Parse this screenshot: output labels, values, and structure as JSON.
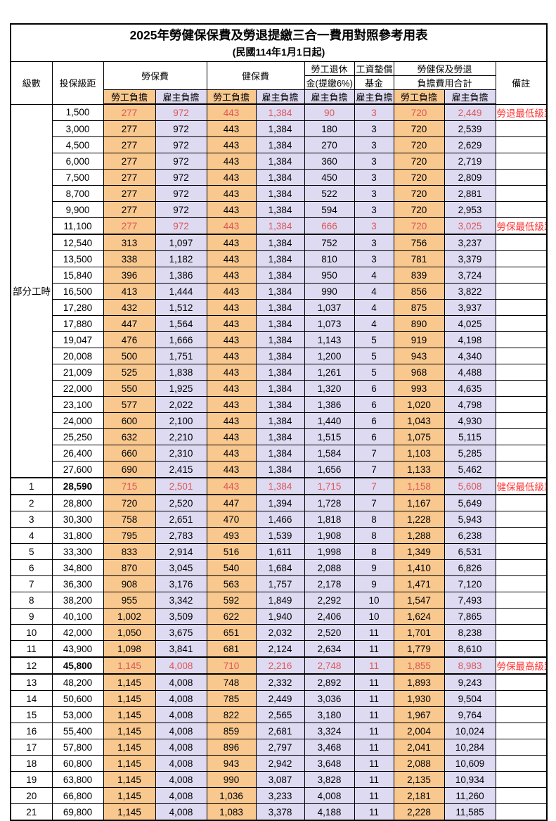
{
  "title": "2025年勞健保保費及勞退提繳三合一費用對照參考用表",
  "subtitle": "(民國114年1月1日起)",
  "header": {
    "level": "級數",
    "salary": "投保級距",
    "labor_ins": "勞保費",
    "health_ins": "健保費",
    "pension_line1": "勞工退休",
    "pension_line2": "金(提繳6%)",
    "wage_fund_line1": "工資墊償",
    "wage_fund_line2": "基金",
    "total_line1": "勞健保及勞退",
    "total_line2": "負擔費用合計",
    "note": "備註",
    "employee_label": "勞工負擔",
    "employer_label": "雇主負擔"
  },
  "part_time_label": "部分工時",
  "colors": {
    "employee_bg": "#F8C88F",
    "employer_bg": "#DEDAF1",
    "highlight_value_red": "#DC5656",
    "note_red": "#FF3333",
    "border_black": "#000000"
  },
  "rows": [
    {
      "level": "",
      "salary": "1,500",
      "values": [
        "277",
        "972",
        "443",
        "1,384",
        "90",
        "3",
        "720",
        "2,449"
      ],
      "note": "勞退最低級距",
      "red": true,
      "bold": false,
      "thick": false,
      "thickAfter": false
    },
    {
      "level": "",
      "salary": "3,000",
      "values": [
        "277",
        "972",
        "443",
        "1,384",
        "180",
        "3",
        "720",
        "2,539"
      ],
      "note": "",
      "red": false,
      "bold": false,
      "thick": false,
      "thickAfter": false
    },
    {
      "level": "",
      "salary": "4,500",
      "values": [
        "277",
        "972",
        "443",
        "1,384",
        "270",
        "3",
        "720",
        "2,629"
      ],
      "note": "",
      "red": false,
      "bold": false,
      "thick": false,
      "thickAfter": false
    },
    {
      "level": "",
      "salary": "6,000",
      "values": [
        "277",
        "972",
        "443",
        "1,384",
        "360",
        "3",
        "720",
        "2,719"
      ],
      "note": "",
      "red": false,
      "bold": false,
      "thick": false,
      "thickAfter": false
    },
    {
      "level": "",
      "salary": "7,500",
      "values": [
        "277",
        "972",
        "443",
        "1,384",
        "450",
        "3",
        "720",
        "2,809"
      ],
      "note": "",
      "red": false,
      "bold": false,
      "thick": false,
      "thickAfter": false
    },
    {
      "level": "",
      "salary": "8,700",
      "values": [
        "277",
        "972",
        "443",
        "1,384",
        "522",
        "3",
        "720",
        "2,881"
      ],
      "note": "",
      "red": false,
      "bold": false,
      "thick": false,
      "thickAfter": false
    },
    {
      "level": "",
      "salary": "9,900",
      "values": [
        "277",
        "972",
        "443",
        "1,384",
        "594",
        "3",
        "720",
        "2,953"
      ],
      "note": "",
      "red": false,
      "bold": false,
      "thick": false,
      "thickAfter": false
    },
    {
      "level": "",
      "salary": "11,100",
      "values": [
        "277",
        "972",
        "443",
        "1,384",
        "666",
        "3",
        "720",
        "3,025"
      ],
      "note": "勞保最低級距",
      "red": true,
      "bold": false,
      "thick": false,
      "thickAfter": true
    },
    {
      "level": "",
      "salary": "12,540",
      "values": [
        "313",
        "1,097",
        "443",
        "1,384",
        "752",
        "3",
        "756",
        "3,237"
      ],
      "note": "",
      "red": false,
      "bold": false,
      "thick": false,
      "thickAfter": false
    },
    {
      "level": "",
      "salary": "13,500",
      "values": [
        "338",
        "1,182",
        "443",
        "1,384",
        "810",
        "3",
        "781",
        "3,379"
      ],
      "note": "",
      "red": false,
      "bold": false,
      "thick": false,
      "thickAfter": false
    },
    {
      "level": "",
      "salary": "15,840",
      "values": [
        "396",
        "1,386",
        "443",
        "1,384",
        "950",
        "4",
        "839",
        "3,724"
      ],
      "note": "",
      "red": false,
      "bold": false,
      "thick": false,
      "thickAfter": false
    },
    {
      "level": "",
      "salary": "16,500",
      "values": [
        "413",
        "1,444",
        "443",
        "1,384",
        "990",
        "4",
        "856",
        "3,822"
      ],
      "note": "",
      "red": false,
      "bold": false,
      "thick": false,
      "thickAfter": false
    },
    {
      "level": "",
      "salary": "17,280",
      "values": [
        "432",
        "1,512",
        "443",
        "1,384",
        "1,037",
        "4",
        "875",
        "3,937"
      ],
      "note": "",
      "red": false,
      "bold": false,
      "thick": false,
      "thickAfter": false
    },
    {
      "level": "",
      "salary": "17,880",
      "values": [
        "447",
        "1,564",
        "443",
        "1,384",
        "1,073",
        "4",
        "890",
        "4,025"
      ],
      "note": "",
      "red": false,
      "bold": false,
      "thick": false,
      "thickAfter": false
    },
    {
      "level": "",
      "salary": "19,047",
      "values": [
        "476",
        "1,666",
        "443",
        "1,384",
        "1,143",
        "5",
        "919",
        "4,198"
      ],
      "note": "",
      "red": false,
      "bold": false,
      "thick": false,
      "thickAfter": false
    },
    {
      "level": "",
      "salary": "20,008",
      "values": [
        "500",
        "1,751",
        "443",
        "1,384",
        "1,200",
        "5",
        "943",
        "4,340"
      ],
      "note": "",
      "red": false,
      "bold": false,
      "thick": false,
      "thickAfter": false
    },
    {
      "level": "",
      "salary": "21,009",
      "values": [
        "525",
        "1,838",
        "443",
        "1,384",
        "1,261",
        "5",
        "968",
        "4,488"
      ],
      "note": "",
      "red": false,
      "bold": false,
      "thick": false,
      "thickAfter": false
    },
    {
      "level": "",
      "salary": "22,000",
      "values": [
        "550",
        "1,925",
        "443",
        "1,384",
        "1,320",
        "6",
        "993",
        "4,635"
      ],
      "note": "",
      "red": false,
      "bold": false,
      "thick": false,
      "thickAfter": false
    },
    {
      "level": "",
      "salary": "23,100",
      "values": [
        "577",
        "2,022",
        "443",
        "1,384",
        "1,386",
        "6",
        "1,020",
        "4,798"
      ],
      "note": "",
      "red": false,
      "bold": false,
      "thick": false,
      "thickAfter": false
    },
    {
      "level": "",
      "salary": "24,000",
      "values": [
        "600",
        "2,100",
        "443",
        "1,384",
        "1,440",
        "6",
        "1,043",
        "4,930"
      ],
      "note": "",
      "red": false,
      "bold": false,
      "thick": false,
      "thickAfter": false
    },
    {
      "level": "",
      "salary": "25,250",
      "values": [
        "632",
        "2,210",
        "443",
        "1,384",
        "1,515",
        "6",
        "1,075",
        "5,115"
      ],
      "note": "",
      "red": false,
      "bold": false,
      "thick": false,
      "thickAfter": false
    },
    {
      "level": "",
      "salary": "26,400",
      "values": [
        "660",
        "2,310",
        "443",
        "1,384",
        "1,584",
        "7",
        "1,103",
        "5,285"
      ],
      "note": "",
      "red": false,
      "bold": false,
      "thick": false,
      "thickAfter": false
    },
    {
      "level": "",
      "salary": "27,600",
      "values": [
        "690",
        "2,415",
        "443",
        "1,384",
        "1,656",
        "7",
        "1,133",
        "5,462"
      ],
      "note": "",
      "red": false,
      "bold": false,
      "thick": false,
      "thickAfter": false
    },
    {
      "level": "1",
      "salary": "28,590",
      "values": [
        "715",
        "2,501",
        "443",
        "1,384",
        "1,715",
        "7",
        "1,158",
        "5,608"
      ],
      "note": "健保最低級距",
      "red": true,
      "bold": true,
      "thick": true,
      "thickAfter": false
    },
    {
      "level": "2",
      "salary": "28,800",
      "values": [
        "720",
        "2,520",
        "447",
        "1,394",
        "1,728",
        "7",
        "1,167",
        "5,649"
      ],
      "note": "",
      "red": false,
      "bold": false,
      "thick": false,
      "thickAfter": false
    },
    {
      "level": "3",
      "salary": "30,300",
      "values": [
        "758",
        "2,651",
        "470",
        "1,466",
        "1,818",
        "8",
        "1,228",
        "5,943"
      ],
      "note": "",
      "red": false,
      "bold": false,
      "thick": false,
      "thickAfter": false
    },
    {
      "level": "4",
      "salary": "31,800",
      "values": [
        "795",
        "2,783",
        "493",
        "1,539",
        "1,908",
        "8",
        "1,288",
        "6,238"
      ],
      "note": "",
      "red": false,
      "bold": false,
      "thick": false,
      "thickAfter": false
    },
    {
      "level": "5",
      "salary": "33,300",
      "values": [
        "833",
        "2,914",
        "516",
        "1,611",
        "1,998",
        "8",
        "1,349",
        "6,531"
      ],
      "note": "",
      "red": false,
      "bold": false,
      "thick": false,
      "thickAfter": false
    },
    {
      "level": "6",
      "salary": "34,800",
      "values": [
        "870",
        "3,045",
        "540",
        "1,684",
        "2,088",
        "9",
        "1,410",
        "6,826"
      ],
      "note": "",
      "red": false,
      "bold": false,
      "thick": false,
      "thickAfter": false
    },
    {
      "level": "7",
      "salary": "36,300",
      "values": [
        "908",
        "3,176",
        "563",
        "1,757",
        "2,178",
        "9",
        "1,471",
        "7,120"
      ],
      "note": "",
      "red": false,
      "bold": false,
      "thick": false,
      "thickAfter": false
    },
    {
      "level": "8",
      "salary": "38,200",
      "values": [
        "955",
        "3,342",
        "592",
        "1,849",
        "2,292",
        "10",
        "1,547",
        "7,493"
      ],
      "note": "",
      "red": false,
      "bold": false,
      "thick": false,
      "thickAfter": false
    },
    {
      "level": "9",
      "salary": "40,100",
      "values": [
        "1,002",
        "3,509",
        "622",
        "1,940",
        "2,406",
        "10",
        "1,624",
        "7,865"
      ],
      "note": "",
      "red": false,
      "bold": false,
      "thick": false,
      "thickAfter": false
    },
    {
      "level": "10",
      "salary": "42,000",
      "values": [
        "1,050",
        "3,675",
        "651",
        "2,032",
        "2,520",
        "11",
        "1,701",
        "8,238"
      ],
      "note": "",
      "red": false,
      "bold": false,
      "thick": false,
      "thickAfter": false
    },
    {
      "level": "11",
      "salary": "43,900",
      "values": [
        "1,098",
        "3,841",
        "681",
        "2,124",
        "2,634",
        "11",
        "1,779",
        "8,610"
      ],
      "note": "",
      "red": false,
      "bold": false,
      "thick": false,
      "thickAfter": false
    },
    {
      "level": "12",
      "salary": "45,800",
      "values": [
        "1,145",
        "4,008",
        "710",
        "2,216",
        "2,748",
        "11",
        "1,855",
        "8,983"
      ],
      "note": "勞保最高級距",
      "red": true,
      "bold": true,
      "thick": true,
      "thickAfter": false
    },
    {
      "level": "13",
      "salary": "48,200",
      "values": [
        "1,145",
        "4,008",
        "748",
        "2,332",
        "2,892",
        "11",
        "1,893",
        "9,243"
      ],
      "note": "",
      "red": false,
      "bold": false,
      "thick": false,
      "thickAfter": false
    },
    {
      "level": "14",
      "salary": "50,600",
      "values": [
        "1,145",
        "4,008",
        "785",
        "2,449",
        "3,036",
        "11",
        "1,930",
        "9,504"
      ],
      "note": "",
      "red": false,
      "bold": false,
      "thick": false,
      "thickAfter": false
    },
    {
      "level": "15",
      "salary": "53,000",
      "values": [
        "1,145",
        "4,008",
        "822",
        "2,565",
        "3,180",
        "11",
        "1,967",
        "9,764"
      ],
      "note": "",
      "red": false,
      "bold": false,
      "thick": false,
      "thickAfter": false
    },
    {
      "level": "16",
      "salary": "55,400",
      "values": [
        "1,145",
        "4,008",
        "859",
        "2,681",
        "3,324",
        "11",
        "2,004",
        "10,024"
      ],
      "note": "",
      "red": false,
      "bold": false,
      "thick": false,
      "thickAfter": false
    },
    {
      "level": "17",
      "salary": "57,800",
      "values": [
        "1,145",
        "4,008",
        "896",
        "2,797",
        "3,468",
        "11",
        "2,041",
        "10,284"
      ],
      "note": "",
      "red": false,
      "bold": false,
      "thick": false,
      "thickAfter": false
    },
    {
      "level": "18",
      "salary": "60,800",
      "values": [
        "1,145",
        "4,008",
        "943",
        "2,942",
        "3,648",
        "11",
        "2,088",
        "10,609"
      ],
      "note": "",
      "red": false,
      "bold": false,
      "thick": false,
      "thickAfter": false
    },
    {
      "level": "19",
      "salary": "63,800",
      "values": [
        "1,145",
        "4,008",
        "990",
        "3,087",
        "3,828",
        "11",
        "2,135",
        "10,934"
      ],
      "note": "",
      "red": false,
      "bold": false,
      "thick": false,
      "thickAfter": false
    },
    {
      "level": "20",
      "salary": "66,800",
      "values": [
        "1,145",
        "4,008",
        "1,036",
        "3,233",
        "4,008",
        "11",
        "2,181",
        "11,260"
      ],
      "note": "",
      "red": false,
      "bold": false,
      "thick": false,
      "thickAfter": false
    },
    {
      "level": "21",
      "salary": "69,800",
      "values": [
        "1,145",
        "4,008",
        "1,083",
        "3,378",
        "4,188",
        "11",
        "2,228",
        "11,585"
      ],
      "note": "",
      "red": false,
      "bold": false,
      "thick": false,
      "thickAfter": false
    }
  ]
}
